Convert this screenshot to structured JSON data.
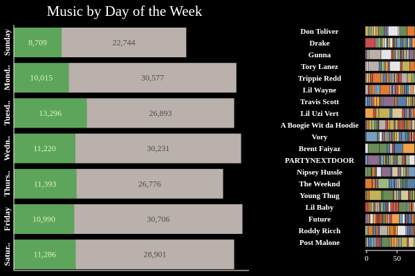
{
  "chart_data": [
    {
      "type": "bar",
      "title": "Music by Day of the Week",
      "orientation": "horizontal",
      "stacked": true,
      "categories": [
        "Sunday",
        "Mond..",
        "Tuesd..",
        "Wedn..",
        "Thurs..",
        "Friday",
        "Satur.."
      ],
      "series": [
        {
          "values": [
            8709,
            10015,
            13296,
            11220,
            11393,
            10990,
            11286
          ],
          "color": "#5da55a",
          "label_color": "#d9f0c6"
        },
        {
          "values": [
            22744,
            30577,
            26893,
            30231,
            26776,
            30706,
            28901
          ],
          "color": "#bab0ac",
          "label_color": "#4d4d4d"
        }
      ],
      "value_labels": [
        [
          "8,709",
          "22,744"
        ],
        [
          "10,015",
          "30,577"
        ],
        [
          "13,296",
          "26,893"
        ],
        [
          "11,220",
          "30,231"
        ],
        [
          "11,393",
          "26,776"
        ],
        [
          "10,990",
          "30,706"
        ],
        [
          "11,286",
          "28,901"
        ]
      ],
      "grid": false,
      "legend": "none"
    },
    {
      "type": "bar",
      "orientation": "horizontal",
      "stacked": true,
      "categories": [
        "Don Toliver",
        "Drake",
        "Gunna",
        "Tory Lanez",
        "Trippie Redd",
        "Lil Wayne",
        "Travis Scott",
        "Lil Uzi Vert",
        "A Boogie Wit da Hoodie",
        "Vory",
        "Brent Faiyaz",
        "PARTYNEXTDOOR",
        "Nipsey Hussle",
        "The Weeknd",
        "Young Thug",
        "Lil Baby",
        "Future",
        "Roddy Ricch",
        "Post Malone"
      ],
      "x_ticks": [
        "0",
        "50"
      ],
      "xlim": [
        0,
        100
      ],
      "grid": false,
      "legend": "none"
    }
  ]
}
